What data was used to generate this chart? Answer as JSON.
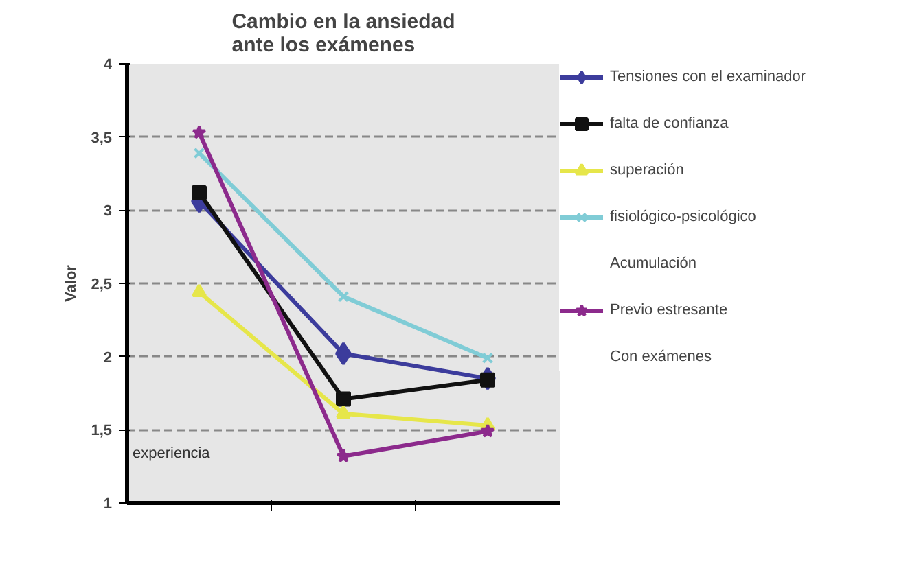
{
  "chart_data": {
    "type": "line",
    "title": "Cambio en la ansiedad ante los exámenes",
    "ylabel": "Valor",
    "categories": [
      null,
      null,
      null
    ],
    "series": [
      {
        "name": "Tensiones con el examinador",
        "color": "#3c3c9c",
        "marker": "diamond",
        "values": [
          3.06,
          2.02,
          1.85
        ]
      },
      {
        "name": "falta de confianza",
        "color": "#111111",
        "marker": "square",
        "values": [
          3.12,
          1.71,
          1.84
        ]
      },
      {
        "name": "superación",
        "color": "#e6e64a",
        "marker": "triangle",
        "values": [
          2.44,
          1.61,
          1.53
        ]
      },
      {
        "name": "fisiológico-psicológico",
        "color": "#80ccd6",
        "marker": "cross",
        "values": [
          3.39,
          2.41,
          1.99
        ]
      },
      {
        "name": "Previo estresante",
        "color": "#8c2a8c",
        "marker": "star",
        "values": [
          3.53,
          1.32,
          1.49
        ]
      }
    ],
    "ylim": [
      1,
      4
    ],
    "yticks": [
      {
        "value": 1,
        "label": "1"
      },
      {
        "value": 1.5,
        "label": "1,5"
      },
      {
        "value": 2,
        "label": "2"
      },
      {
        "value": 2.5,
        "label": "2,5"
      },
      {
        "value": 3,
        "label": "3"
      },
      {
        "value": 3.5,
        "label": "3,5"
      },
      {
        "value": 4,
        "label": "4"
      }
    ],
    "grid": "y",
    "legend": "right",
    "line_style": "solid",
    "annotations": [
      "experiencia",
      "Acumulación",
      "Con exámenes"
    ]
  }
}
